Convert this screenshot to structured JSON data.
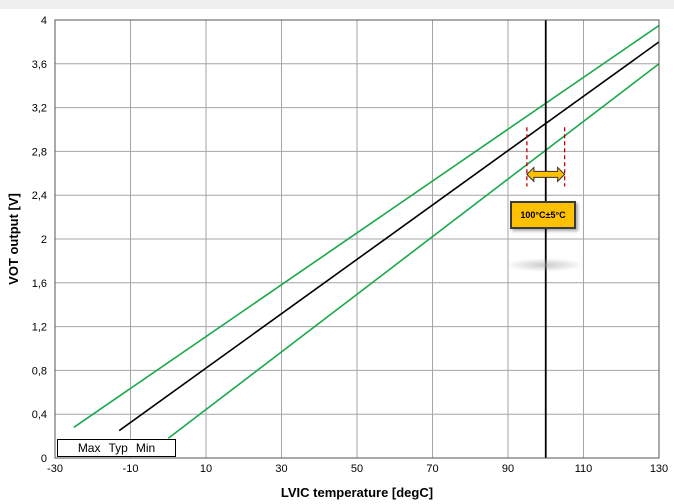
{
  "chart_data": {
    "type": "line",
    "xlabel": "LVIC temperature [degC]",
    "ylabel": "VOT output [V]",
    "xlim": [
      -30,
      130
    ],
    "ylim": [
      0,
      4
    ],
    "x_ticks": [
      "-30",
      "-10",
      "10",
      "30",
      "50",
      "70",
      "90",
      "110",
      "130"
    ],
    "y_ticks": [
      "0",
      "0,4",
      "0,8",
      "1,2",
      "1,6",
      "2",
      "2,4",
      "2,8",
      "3,2",
      "3,6",
      "4"
    ],
    "grid": true,
    "series": [
      {
        "name": "Max",
        "color": "#1aa84a",
        "points": [
          [
            -25,
            0.28
          ],
          [
            130,
            3.95
          ]
        ]
      },
      {
        "name": "Typ",
        "color": "#000000",
        "points": [
          [
            -13,
            0.25
          ],
          [
            130,
            3.8
          ]
        ]
      },
      {
        "name": "Min",
        "color": "#1aa84a",
        "points": [
          [
            0,
            0.18
          ],
          [
            130,
            3.6
          ]
        ]
      }
    ],
    "marker_line_x": 100,
    "tolerance": {
      "center": 100,
      "low": 95,
      "high": 105,
      "y_top": 3.02,
      "y_bottom": 2.48,
      "arrow_y": 2.59,
      "arrow_color": "#ffc000",
      "dash_color": "#c00000"
    },
    "legend": {
      "position": "bottom-left",
      "entries": [
        "Max",
        "Typ",
        "Min"
      ]
    },
    "annotation": {
      "text": "100°C±5°C",
      "color": "#ffc000"
    }
  }
}
